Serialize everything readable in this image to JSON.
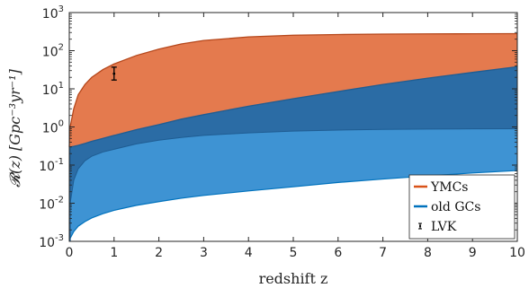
{
  "chart_data": {
    "type": "area",
    "x_scale": "linear",
    "y_scale": "log",
    "xlim": [
      0,
      10
    ],
    "ylim": [
      0.001,
      1000
    ],
    "xlabel": "redshift z",
    "ylabel": "𝓡(z) [Gpc⁻³yr⁻¹]",
    "xticks": [
      "0",
      "1",
      "2",
      "3",
      "4",
      "5",
      "6",
      "7",
      "8",
      "9",
      "10"
    ],
    "yticks": [
      {
        "base": "10",
        "exp": "-3"
      },
      {
        "base": "10",
        "exp": "-2"
      },
      {
        "base": "10",
        "exp": "-1"
      },
      {
        "base": "10",
        "exp": "0"
      },
      {
        "base": "10",
        "exp": "1"
      },
      {
        "base": "10",
        "exp": "2"
      },
      {
        "base": "10",
        "exp": "3"
      }
    ],
    "grid": false,
    "legend_position": "bottom-right",
    "series": [
      {
        "name": "YMCs",
        "kind": "band",
        "color": "#D95319",
        "fill": "#E47A4E",
        "x": [
          0,
          0.02,
          0.1,
          0.2,
          0.35,
          0.5,
          0.75,
          1,
          1.5,
          2,
          2.5,
          3,
          4,
          5,
          6,
          7,
          8,
          9,
          10
        ],
        "upper": [
          0.3,
          1.0,
          3.0,
          7.0,
          13,
          20,
          32,
          45,
          75,
          110,
          150,
          185,
          230,
          255,
          265,
          272,
          276,
          278,
          280
        ],
        "lower": [
          0.3,
          0.3,
          0.31,
          0.33,
          0.37,
          0.42,
          0.5,
          0.6,
          0.85,
          1.15,
          1.6,
          2.1,
          3.5,
          5.5,
          8.5,
          13,
          19,
          27,
          38
        ]
      },
      {
        "name": "old GCs",
        "kind": "band",
        "color": "#0072BD",
        "fill": "#3E93D3",
        "overlap_fill": "#2B6CA5",
        "x": [
          0,
          0.02,
          0.1,
          0.2,
          0.35,
          0.5,
          0.75,
          1,
          1.5,
          2,
          2.5,
          3,
          4,
          5,
          6,
          7,
          8,
          9,
          10
        ],
        "upper": [
          0.3,
          0.3,
          0.31,
          0.33,
          0.37,
          0.42,
          0.5,
          0.6,
          0.85,
          1.15,
          1.6,
          2.1,
          3.5,
          5.5,
          8.5,
          13,
          19,
          27,
          38
        ],
        "lower": [
          0.001,
          0.0012,
          0.0018,
          0.0025,
          0.0033,
          0.0041,
          0.0053,
          0.0065,
          0.0088,
          0.011,
          0.0135,
          0.016,
          0.021,
          0.027,
          0.035,
          0.043,
          0.052,
          0.062,
          0.072
        ],
        "inner_curve": [
          0.001,
          0.01,
          0.04,
          0.08,
          0.13,
          0.17,
          0.22,
          0.26,
          0.36,
          0.45,
          0.53,
          0.6,
          0.7,
          0.78,
          0.83,
          0.86,
          0.88,
          0.89,
          0.9
        ]
      }
    ],
    "points": [
      {
        "name": "LVK",
        "x": 1,
        "y": 25,
        "y_low": 17,
        "y_high": 37,
        "color": "#000000"
      }
    ],
    "legend": [
      {
        "label": "YMCs",
        "symbol": "line",
        "color": "#D95319"
      },
      {
        "label": "old GCs",
        "symbol": "line",
        "color": "#0072BD"
      },
      {
        "label": "LVK",
        "symbol": "errorbar",
        "color": "#000000"
      }
    ]
  }
}
